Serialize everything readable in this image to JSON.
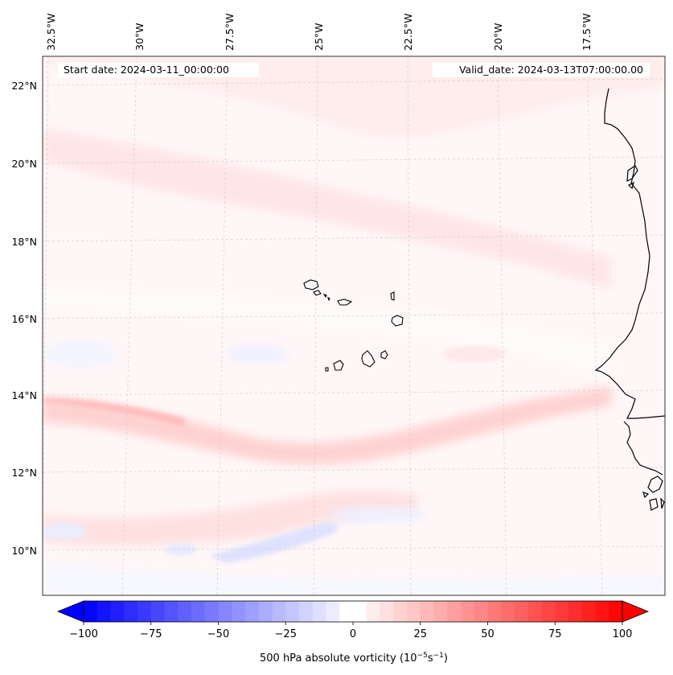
{
  "map": {
    "start_label": "Start date: 2024-03-11_00:00:00",
    "valid_label": "Valid_date: 2024-03-13T07:00:00.00",
    "lon_labels": [
      "32.5°W",
      "30°W",
      "27.5°W",
      "25°W",
      "22.5°W",
      "20°W",
      "17.5°W"
    ],
    "lat_labels": [
      "22°N",
      "20°N",
      "18°N",
      "16°N",
      "14°N",
      "12°N",
      "10°N"
    ],
    "features": {
      "islands": "Cape Verde islands",
      "coast": "West African coastline"
    }
  },
  "colorbar": {
    "ticks": [
      "−100",
      "−75",
      "−50",
      "−25",
      "0",
      "25",
      "50",
      "75",
      "100"
    ],
    "label_main": "500 hPa absolute vorticity (10",
    "label_exp1": "−5",
    "label_mid": "s",
    "label_exp2": "−1",
    "label_end": ")",
    "min": -100,
    "max": 100,
    "neg_color": "#0000ff",
    "pos_color": "#ff0000"
  }
}
